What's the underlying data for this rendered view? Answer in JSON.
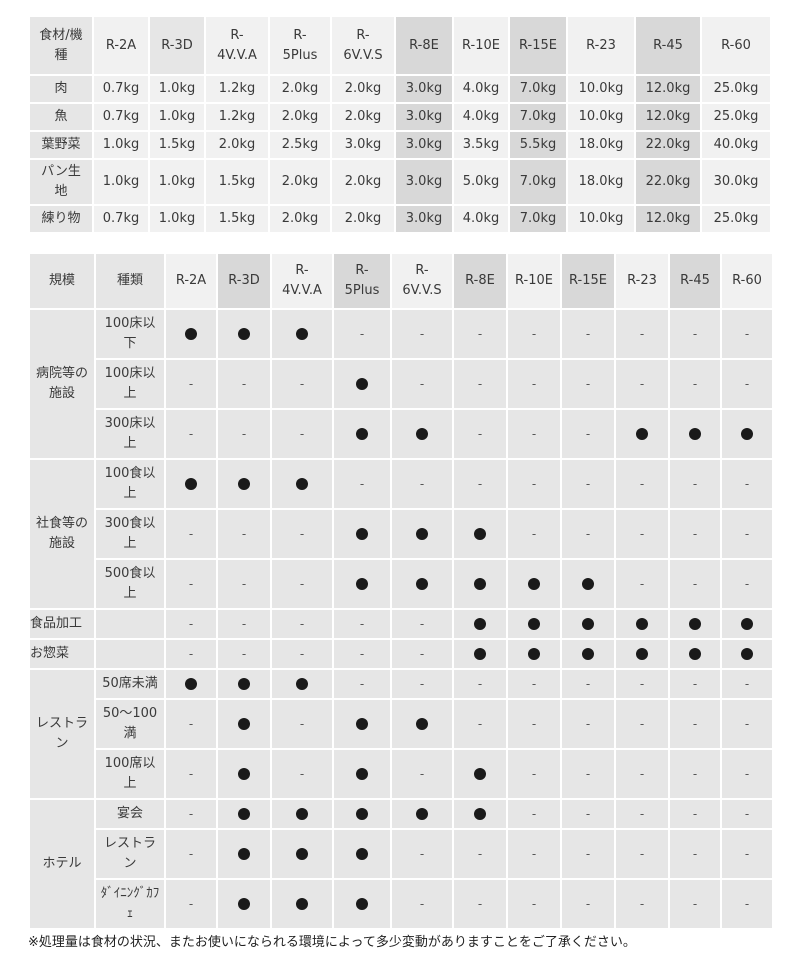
{
  "table1": {
    "header": [
      "食材/機種",
      "R-2A",
      "R-3D",
      "R-4V.V.A",
      "R-5Plus",
      "R-6V.V.S",
      "R-8E",
      "R-10E",
      "R-15E",
      "R-23",
      "R-45",
      "R-60"
    ],
    "header_display": [
      "食材/機\n種",
      "R-2A",
      "R-3D",
      "R-\n4V.V.A",
      "R-\n5Plus",
      "R-\n6V.V.S",
      "R-8E",
      "R-10E",
      "R-15E",
      "R-23",
      "R-45",
      "R-60"
    ],
    "rows": [
      {
        "label": "肉",
        "values": [
          "0.7kg",
          "1.0kg",
          "1.2kg",
          "2.0kg",
          "2.0kg",
          "3.0kg",
          "4.0kg",
          "7.0kg",
          "10.0kg",
          "12.0kg",
          "25.0kg"
        ]
      },
      {
        "label": "魚",
        "values": [
          "0.7kg",
          "1.0kg",
          "1.2kg",
          "2.0kg",
          "2.0kg",
          "3.0kg",
          "4.0kg",
          "7.0kg",
          "10.0kg",
          "12.0kg",
          "25.0kg"
        ]
      },
      {
        "label": "葉野菜",
        "values": [
          "1.0kg",
          "1.5kg",
          "2.0kg",
          "2.5kg",
          "3.0kg",
          "3.0kg",
          "3.5kg",
          "5.5kg",
          "18.0kg",
          "22.0kg",
          "40.0kg"
        ]
      },
      {
        "label": "パン生\n地",
        "values": [
          "1.0kg",
          "1.0kg",
          "1.5kg",
          "2.0kg",
          "2.0kg",
          "3.0kg",
          "5.0kg",
          "7.0kg",
          "18.0kg",
          "22.0kg",
          "30.0kg"
        ]
      },
      {
        "label": "練り物",
        "values": [
          "0.7kg",
          "1.0kg",
          "1.5kg",
          "2.0kg",
          "2.0kg",
          "3.0kg",
          "4.0kg",
          "7.0kg",
          "10.0kg",
          "12.0kg",
          "25.0kg"
        ]
      }
    ]
  },
  "table2": {
    "header": [
      "規模",
      "種類",
      "R-2A",
      "R-3D",
      "R-\n4V.V.A",
      "R-\n5Plus",
      "R-\n6V.V.S",
      "R-8E",
      "R-10E",
      "R-15E",
      "R-23",
      "R-45",
      "R-60"
    ],
    "dot_symbol": "●",
    "dash_symbol": "-",
    "groups": [
      {
        "scale": "病院等の\n施設",
        "rows": [
          {
            "type": "100床以\n下",
            "marks": [
              1,
              1,
              1,
              0,
              0,
              0,
              0,
              0,
              0,
              0,
              0
            ]
          },
          {
            "type": "100床以\n上",
            "marks": [
              0,
              0,
              0,
              1,
              0,
              0,
              0,
              0,
              0,
              0,
              0
            ]
          },
          {
            "type": "300床以\n上",
            "marks": [
              0,
              0,
              0,
              1,
              1,
              0,
              0,
              0,
              1,
              1,
              1
            ]
          }
        ]
      },
      {
        "scale": "社食等の\n施設",
        "rows": [
          {
            "type": "100食以\n上",
            "marks": [
              1,
              1,
              1,
              0,
              0,
              0,
              0,
              0,
              0,
              0,
              0
            ]
          },
          {
            "type": "300食以\n上",
            "marks": [
              0,
              0,
              0,
              1,
              1,
              1,
              0,
              0,
              0,
              0,
              0
            ]
          },
          {
            "type": "500食以\n上",
            "marks": [
              0,
              0,
              0,
              1,
              1,
              1,
              1,
              1,
              0,
              0,
              0
            ]
          }
        ]
      },
      {
        "scale": "食品加工",
        "rows": [
          {
            "type": "",
            "marks": [
              0,
              0,
              0,
              0,
              0,
              1,
              1,
              1,
              1,
              1,
              1
            ]
          }
        ]
      },
      {
        "scale": "お惣菜",
        "rows": [
          {
            "type": "",
            "marks": [
              0,
              0,
              0,
              0,
              0,
              1,
              1,
              1,
              1,
              1,
              1
            ]
          }
        ]
      },
      {
        "scale": "レストラ\nン",
        "rows": [
          {
            "type": "50席未満",
            "marks": [
              1,
              1,
              1,
              0,
              0,
              0,
              0,
              0,
              0,
              0,
              0
            ]
          },
          {
            "type": "50〜100\n満",
            "marks": [
              0,
              1,
              0,
              1,
              1,
              0,
              0,
              0,
              0,
              0,
              0
            ]
          },
          {
            "type": "100席以\n上",
            "marks": [
              0,
              1,
              0,
              1,
              0,
              1,
              0,
              0,
              0,
              0,
              0
            ]
          }
        ]
      },
      {
        "scale": "ホテル",
        "rows": [
          {
            "type": "宴会",
            "marks": [
              0,
              1,
              1,
              1,
              1,
              1,
              0,
              0,
              0,
              0,
              0
            ]
          },
          {
            "type": "レストラ\nン",
            "marks": [
              0,
              1,
              1,
              1,
              0,
              0,
              0,
              0,
              0,
              0,
              0
            ]
          },
          {
            "type": "ﾀﾞｲﾆﾝｸﾞｶﾌ\nｪ",
            "marks": [
              0,
              1,
              1,
              1,
              0,
              0,
              0,
              0,
              0,
              0,
              0
            ]
          }
        ]
      }
    ]
  },
  "footnote": "※処理量は食材の状況、またお使いになられる環境によって多少変動がありますことをご了承ください。"
}
